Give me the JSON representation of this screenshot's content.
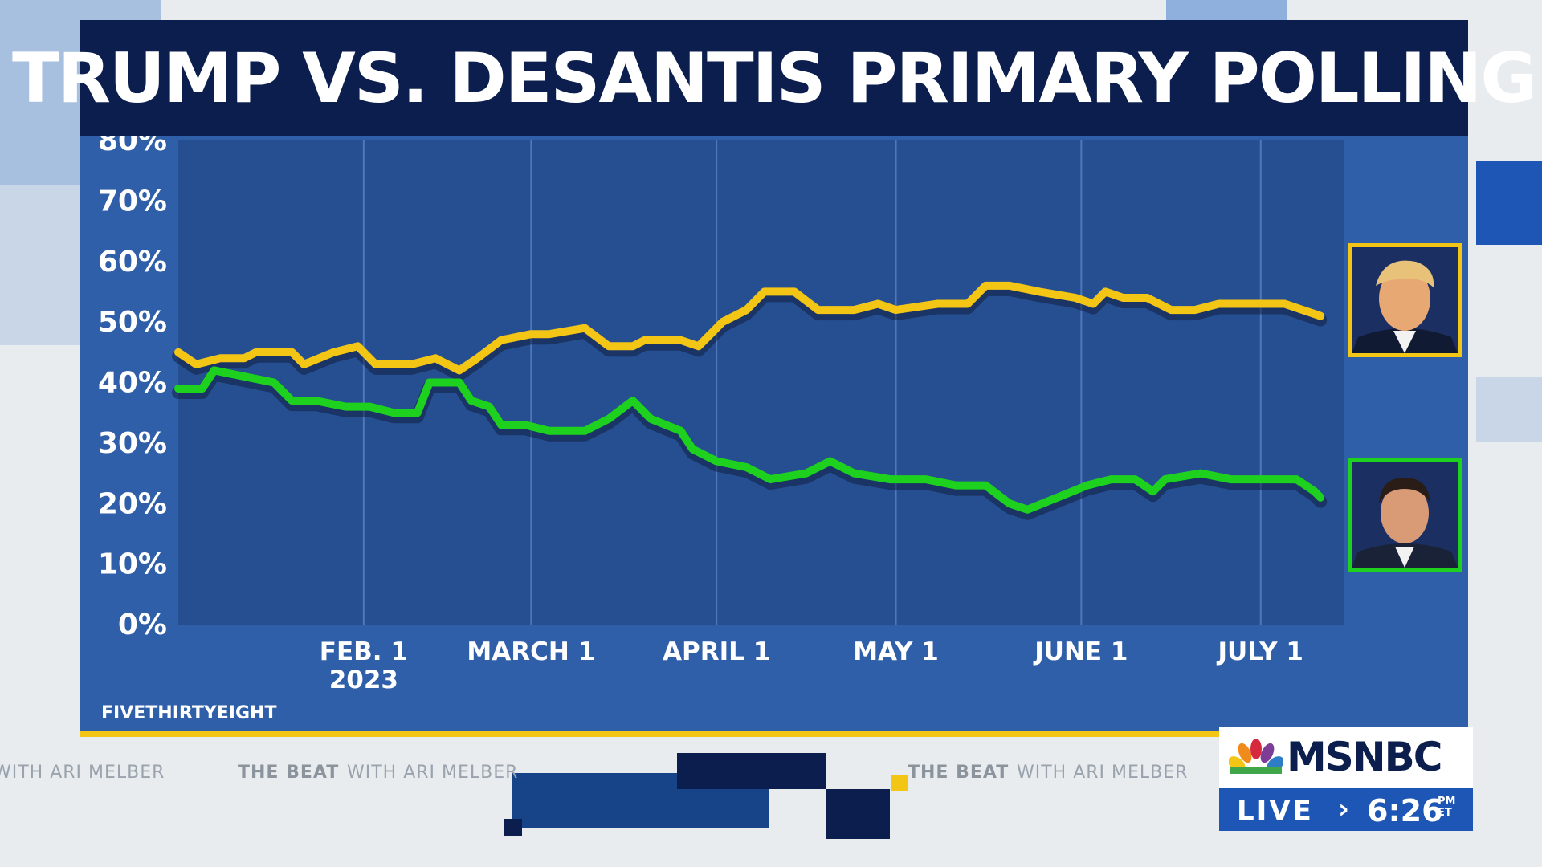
{
  "title": "TRUMP VS. DESANTIS PRIMARY POLLING",
  "source": "FIVETHIRTYEIGHT",
  "colors": {
    "trump": "#f3c515",
    "desantis": "#1fd11f",
    "title_bg": "#0b1e4d",
    "panel_bg": "#2f5fa8",
    "plot_bg": "#264f91"
  },
  "ticker": {
    "show": "THE BEAT",
    "host": "WITH ARI MELBER"
  },
  "network": {
    "logo": "MSNBC",
    "live_label": "LIVE",
    "time": "6:26",
    "time_suffix_1": "PM",
    "time_suffix_2": "ET"
  },
  "photos": [
    {
      "series": "Trump",
      "icon": "trump-photo-icon"
    },
    {
      "series": "DeSantis",
      "icon": "desantis-photo-icon"
    }
  ],
  "chart_data": {
    "type": "line",
    "title": "TRUMP VS. DESANTIS PRIMARY POLLING",
    "ylim": [
      0,
      80
    ],
    "yticks": [
      "80%",
      "70%",
      "60%",
      "50%",
      "40%",
      "30%",
      "20%",
      "10%",
      "0%"
    ],
    "xlim": [
      "2023-01-01",
      "2023-07-15"
    ],
    "xticks": [
      {
        "date": "2023-02-01",
        "line1": "FEB. 1",
        "line2": "2023"
      },
      {
        "date": "2023-03-01",
        "line1": "MARCH 1",
        "line2": ""
      },
      {
        "date": "2023-04-01",
        "line1": "APRIL 1",
        "line2": ""
      },
      {
        "date": "2023-05-01",
        "line1": "MAY 1",
        "line2": ""
      },
      {
        "date": "2023-06-01",
        "line1": "JUNE 1",
        "line2": ""
      },
      {
        "date": "2023-07-01",
        "line1": "JULY 1",
        "line2": ""
      }
    ],
    "grid": true,
    "series": [
      {
        "key": "trump",
        "points": [
          [
            "2023-01-01",
            45
          ],
          [
            "2023-01-04",
            43
          ],
          [
            "2023-01-08",
            44
          ],
          [
            "2023-01-12",
            44
          ],
          [
            "2023-01-14",
            45
          ],
          [
            "2023-01-20",
            45
          ],
          [
            "2023-01-22",
            43
          ],
          [
            "2023-01-27",
            45
          ],
          [
            "2023-01-31",
            46
          ],
          [
            "2023-02-03",
            43
          ],
          [
            "2023-02-09",
            43
          ],
          [
            "2023-02-13",
            44
          ],
          [
            "2023-02-17",
            42
          ],
          [
            "2023-02-20",
            44
          ],
          [
            "2023-02-24",
            47
          ],
          [
            "2023-03-01",
            48
          ],
          [
            "2023-03-04",
            48
          ],
          [
            "2023-03-10",
            49
          ],
          [
            "2023-03-14",
            46
          ],
          [
            "2023-03-18",
            46
          ],
          [
            "2023-03-20",
            47
          ],
          [
            "2023-03-26",
            47
          ],
          [
            "2023-03-29",
            46
          ],
          [
            "2023-04-02",
            50
          ],
          [
            "2023-04-06",
            52
          ],
          [
            "2023-04-09",
            55
          ],
          [
            "2023-04-14",
            55
          ],
          [
            "2023-04-18",
            52
          ],
          [
            "2023-04-24",
            52
          ],
          [
            "2023-04-28",
            53
          ],
          [
            "2023-05-01",
            52
          ],
          [
            "2023-05-08",
            53
          ],
          [
            "2023-05-13",
            53
          ],
          [
            "2023-05-16",
            56
          ],
          [
            "2023-05-20",
            56
          ],
          [
            "2023-05-25",
            55
          ],
          [
            "2023-05-31",
            54
          ],
          [
            "2023-06-03",
            53
          ],
          [
            "2023-06-05",
            55
          ],
          [
            "2023-06-08",
            54
          ],
          [
            "2023-06-12",
            54
          ],
          [
            "2023-06-16",
            52
          ],
          [
            "2023-06-20",
            52
          ],
          [
            "2023-06-24",
            53
          ],
          [
            "2023-06-30",
            53
          ],
          [
            "2023-07-05",
            53
          ],
          [
            "2023-07-08",
            52
          ],
          [
            "2023-07-11",
            51
          ]
        ]
      },
      {
        "key": "desantis",
        "points": [
          [
            "2023-01-01",
            39
          ],
          [
            "2023-01-05",
            39
          ],
          [
            "2023-01-07",
            42
          ],
          [
            "2023-01-12",
            41
          ],
          [
            "2023-01-17",
            40
          ],
          [
            "2023-01-20",
            37
          ],
          [
            "2023-01-24",
            37
          ],
          [
            "2023-01-29",
            36
          ],
          [
            "2023-02-02",
            36
          ],
          [
            "2023-02-06",
            35
          ],
          [
            "2023-02-10",
            35
          ],
          [
            "2023-02-12",
            40
          ],
          [
            "2023-02-17",
            40
          ],
          [
            "2023-02-19",
            37
          ],
          [
            "2023-02-22",
            36
          ],
          [
            "2023-02-24",
            33
          ],
          [
            "2023-02-28",
            33
          ],
          [
            "2023-03-04",
            32
          ],
          [
            "2023-03-10",
            32
          ],
          [
            "2023-03-14",
            34
          ],
          [
            "2023-03-18",
            37
          ],
          [
            "2023-03-21",
            34
          ],
          [
            "2023-03-26",
            32
          ],
          [
            "2023-03-28",
            29
          ],
          [
            "2023-04-01",
            27
          ],
          [
            "2023-04-06",
            26
          ],
          [
            "2023-04-10",
            24
          ],
          [
            "2023-04-16",
            25
          ],
          [
            "2023-04-20",
            27
          ],
          [
            "2023-04-24",
            25
          ],
          [
            "2023-04-30",
            24
          ],
          [
            "2023-05-06",
            24
          ],
          [
            "2023-05-11",
            23
          ],
          [
            "2023-05-16",
            23
          ],
          [
            "2023-05-20",
            20
          ],
          [
            "2023-05-23",
            19
          ],
          [
            "2023-05-28",
            21
          ],
          [
            "2023-06-02",
            23
          ],
          [
            "2023-06-06",
            24
          ],
          [
            "2023-06-10",
            24
          ],
          [
            "2023-06-13",
            22
          ],
          [
            "2023-06-15",
            24
          ],
          [
            "2023-06-21",
            25
          ],
          [
            "2023-06-26",
            24
          ],
          [
            "2023-07-02",
            24
          ],
          [
            "2023-07-07",
            24
          ],
          [
            "2023-07-10",
            22
          ],
          [
            "2023-07-11",
            21
          ]
        ]
      }
    ]
  }
}
